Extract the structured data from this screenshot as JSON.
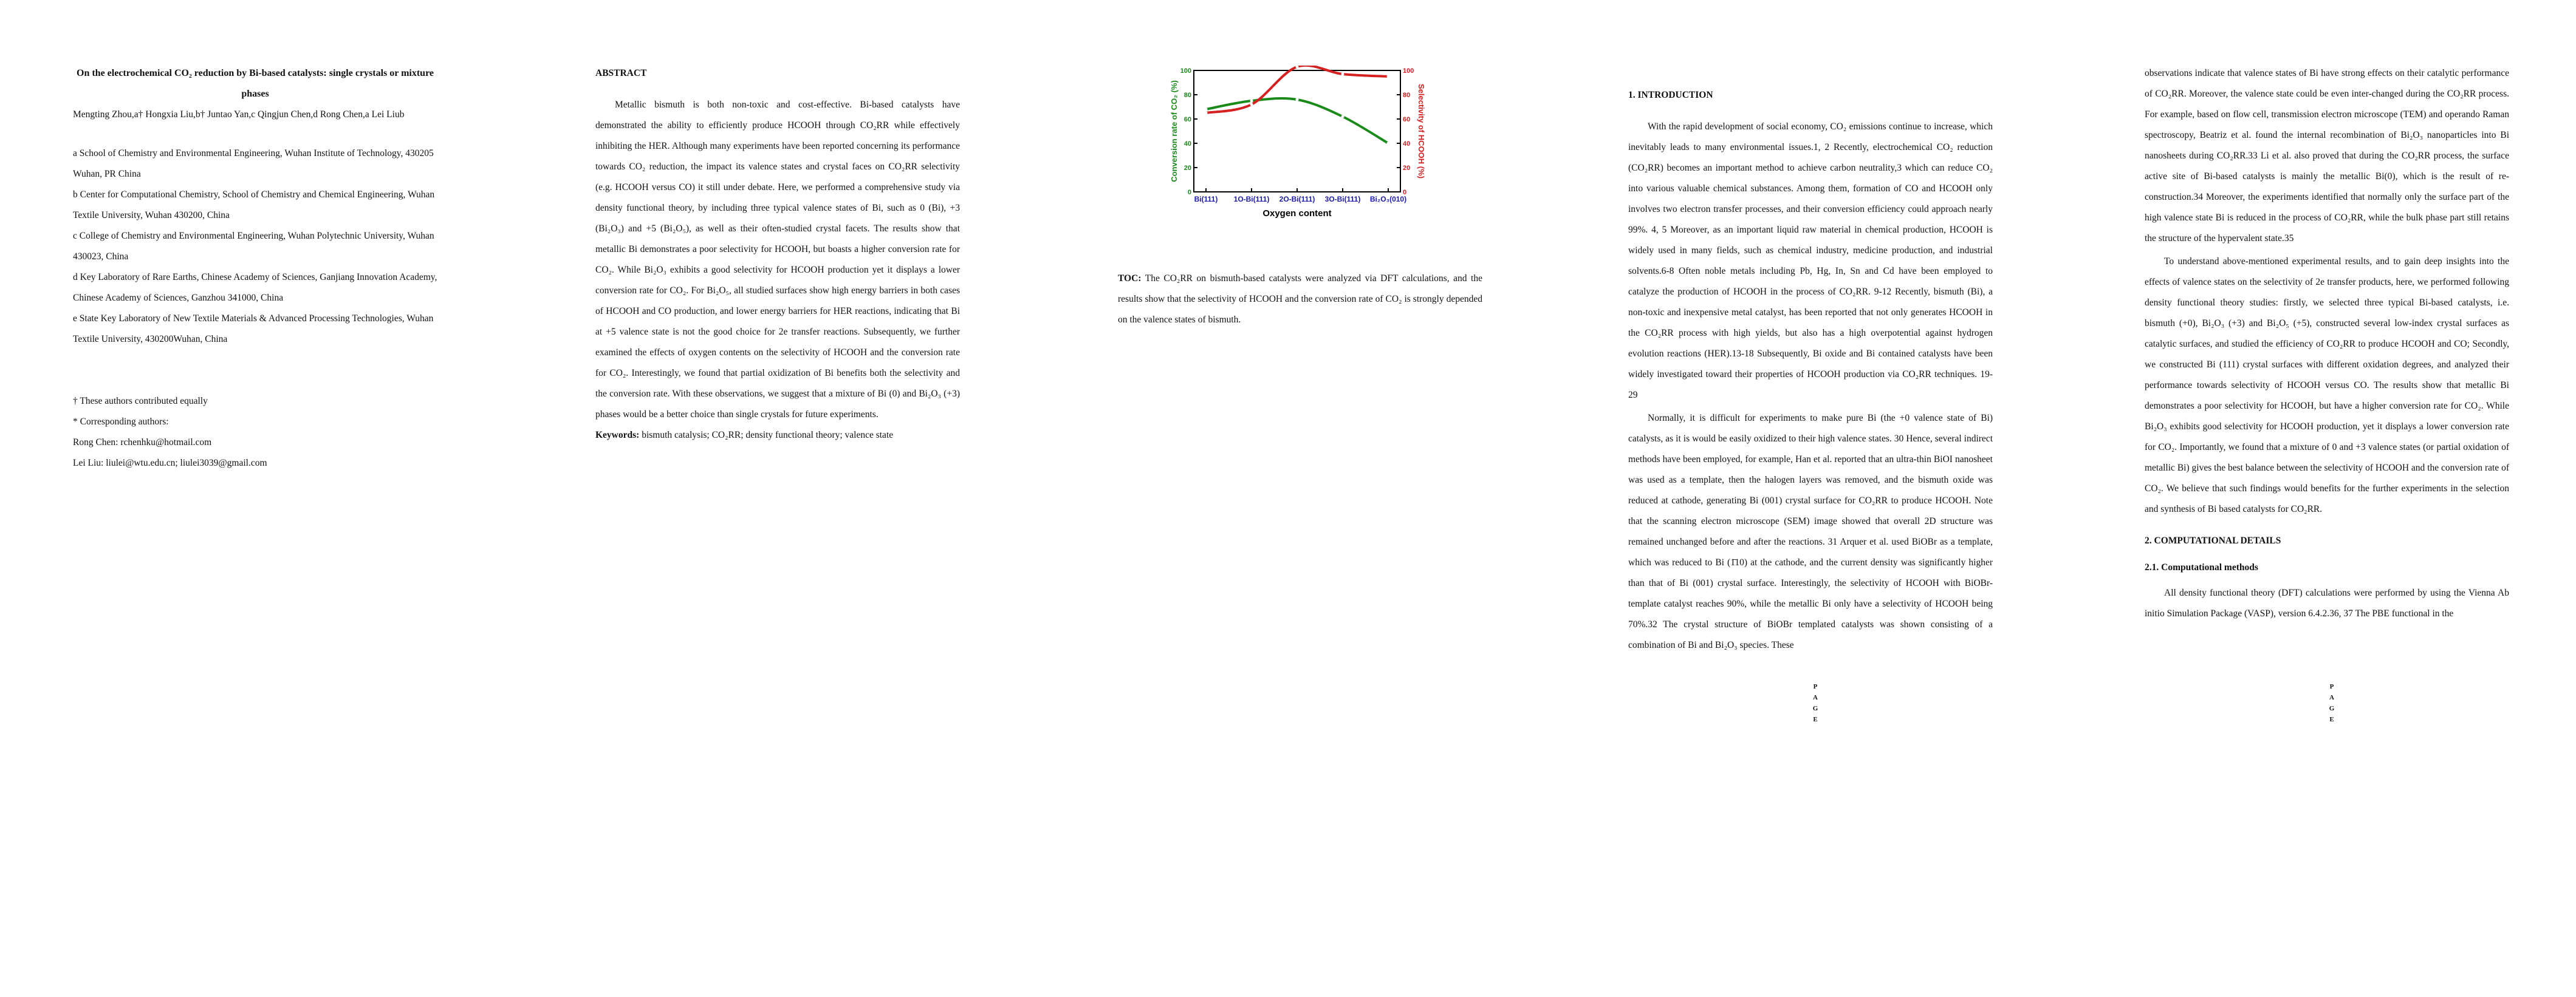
{
  "col1": {
    "title": "On the electrochemical CO₂ reduction by Bi-based catalysts: single crystals or mixture phases",
    "authors": "Mengting Zhou,a† Hongxia Liu,b† Juntao Yan,c Qingjun Chen,d Rong Chen,a Lei Liub",
    "affiliations": [
      "a School of Chemistry and Environmental Engineering, Wuhan Institute of Technology, 430205 Wuhan, PR China",
      "b Center for Computational Chemistry, School of Chemistry and Chemical Engineering, Wuhan Textile University, Wuhan 430200, China",
      "c College of Chemistry and Environmental Engineering, Wuhan Polytechnic University, Wuhan 430023, China",
      "d Key Laboratory of Rare Earths, Chinese Academy of Sciences, Ganjiang Innovation Academy, Chinese Academy of Sciences, Ganzhou 341000, China",
      "e State Key Laboratory of New Textile Materials & Advanced Processing Technologies, Wuhan Textile University, 430200Wuhan, China"
    ],
    "notes": [
      "† These authors contributed equally",
      "* Corresponding authors:",
      "Rong Chen: rchenhku@hotmail.com",
      "Lei Liu: liulei@wtu.edu.cn; liulei3039@gmail.com"
    ]
  },
  "col2": {
    "abstract_heading": "ABSTRACT",
    "abstract_text": "Metallic bismuth is both non-toxic and cost-effective. Bi-based catalysts have demonstrated the ability to efficiently produce HCOOH through CO₂RR while effectively inhibiting the HER. Although many experiments have been reported concerning its performance towards CO₂ reduction, the impact its valence states and crystal faces on CO₂RR selectivity (e.g. HCOOH versus CO) it still under debate. Here, we performed a comprehensive study via density functional theory, by including three typical valence states of Bi, such as 0 (Bi), +3 (Bi₂O₃) and +5 (Bi₂O₅), as well as their often-studied crystal facets. The results show that metallic Bi demonstrates a poor selectivity for HCOOH, but boasts a higher conversion rate for CO₂. While Bi₂O₃ exhibits a good selectivity for HCOOH production yet it displays a lower conversion rate for CO₂. For Bi₂O₅, all studied surfaces show high energy barriers in both cases of HCOOH and CO production, and lower energy barriers for HER reactions, indicating that Bi at +5 valence state is not the good choice for 2e transfer reactions. Subsequently, we further examined the effects of oxygen contents on the selectivity of HCOOH and the conversion rate for CO₂. Interestingly, we found that partial oxidization of Bi benefits both the selectivity and the conversion rate. With these observations, we suggest that a mixture of Bi (0) and Bi₂O₃ (+3) phases would be a better choice than single crystals for future experiments.",
    "keywords_label": "Keywords:",
    "keywords_text": "bismuth catalysis; CO₂RR; density functional theory; valence state"
  },
  "toc": {
    "label": "TOC:",
    "text": "The CO₂RR on bismuth-based catalysts were analyzed via DFT calculations, and the results show that the selectivity of HCOOH and the conversion rate of CO₂ is strongly depended on the valence states of bismuth."
  },
  "chart_data": {
    "type": "line",
    "categories": [
      "Bi(111)",
      "1O-Bi(111)",
      "2O-Bi(111)",
      "3O-Bi(111)",
      "Bi₂O₃(010)"
    ],
    "xlabel": "Oxygen content",
    "ylabel_left": "Conversion rate of CO₂ (%)",
    "ylabel_right": "Selectivity of HCOOH (%)",
    "ylim_left": [
      0,
      100
    ],
    "ylim_right": [
      0,
      100
    ],
    "yticks": [
      "0",
      "20",
      "40",
      "60",
      "80",
      "100"
    ],
    "series": [
      {
        "axis": "left",
        "color": "#1a8a1a",
        "values": [
          68,
          75,
          76,
          62,
          40
        ]
      },
      {
        "axis": "right",
        "color": "#d42020",
        "values": [
          65,
          72,
          103,
          97,
          95
        ]
      }
    ]
  },
  "col4": {
    "intro_heading": "1.   INTRODUCTION",
    "para1": "With the rapid development of social economy, CO₂ emissions continue to increase, which inevitably leads to many environmental issues.1, 2 Recently, electrochemical CO₂ reduction (CO₂RR) becomes an important method to achieve carbon neutrality,3 which can reduce CO₂ into various valuable chemical substances. Among them, formation of CO and HCOOH only involves two electron transfer processes, and their conversion efficiency could approach nearly 99%. 4, 5 Moreover, as an important liquid raw material in chemical production, HCOOH is widely used in many fields, such as chemical industry, medicine production, and industrial solvents.6-8 Often noble metals including Pb, Hg, In, Sn and Cd have been employed to catalyze the production of HCOOH in the process of CO₂RR. 9-12 Recently, bismuth (Bi), a non-toxic and inexpensive metal catalyst, has been reported that not only generates HCOOH in the CO₂RR process with high yields, but also has a high overpotential against hydrogen evolution reactions (HER).13-18 Subsequently, Bi oxide and Bi contained catalysts have been widely investigated toward their properties of HCOOH production via CO₂RR techniques. 19-29",
    "para2": "Normally, it is difficult for experiments to make pure Bi (the +0 valence state of Bi) catalysts, as it is would be easily oxidized to their high valence states. 30 Hence, several indirect methods have been employed, for example, Han et al. reported that an ultra-thin BiOI nanosheet was used as a template, then the halogen layers was removed, and the bismuth oxide was reduced at cathode, generating Bi (001) crystal surface for CO₂RR to produce HCOOH. Note that the scanning electron microscope (SEM) image showed that overall 2D structure was remained unchanged before and after the reactions. 31 Arquer et al. used BiOBr as a template, which was reduced to Bi (1̄10) at the cathode, and the current density was significantly higher than that of Bi (001) crystal surface. Interestingly, the selectivity of HCOOH with BiOBr-template catalyst reaches 90%, while the metallic Bi only have a selectivity of HCOOH being 70%.32 The crystal structure of BiOBr templated catalysts was shown consisting of a combination of Bi and Bi₂O₃ species. These"
  },
  "col5": {
    "para1": "observations indicate that valence states of Bi have strong effects on their catalytic performance of CO₂RR. Moreover, the valence state could be even inter-changed during the CO₂RR process. For example, based on flow cell, transmission electron microscope (TEM) and operando Raman spectroscopy, Beatriz et al. found the internal recombination of Bi₂O₃ nanoparticles into Bi nanosheets during CO₂RR.33 Li et al. also proved that during the CO₂RR process, the surface active site of Bi-based catalysts is mainly the metallic Bi(0), which is the result of re-construction.34 Moreover, the experiments identified that normally only the surface part of the high valence state Bi is reduced in the process of CO₂RR, while the bulk phase part still retains the structure of the hypervalent state.35",
    "para2": "To understand above-mentioned experimental results, and to gain deep insights into the effects of valence states on the selectivity of 2e transfer products, here, we performed following density functional theory studies: firstly, we selected three typical Bi-based catalysts, i.e. bismuth (+0), Bi₂O₃ (+3) and Bi₂O₅ (+5), constructed several low-index crystal surfaces as catalytic surfaces, and studied the efficiency of CO₂RR to produce HCOOH and CO; Secondly, we constructed Bi (111) crystal surfaces with different oxidation degrees, and analyzed their performance towards selectivity of HCOOH versus CO. The results show that metallic Bi demonstrates a poor selectivity for HCOOH, but have a higher conversion rate for CO₂. While Bi₂O₃ exhibits good selectivity for HCOOH production, yet it displays a lower conversion rate for CO₂. Importantly, we found that a mixture of 0 and +3 valence states (or partial oxidation of metallic Bi) gives the best balance between the selectivity of HCOOH and the conversion rate of CO₂. We believe that such findings would benefits for the further experiments in the selection and synthesis of Bi based catalysts for CO₂RR.",
    "heading2": "2.   COMPUTATIONAL DETAILS",
    "heading21": "2.1. Computational methods",
    "para3": "All density functional theory (DFT) calculations were performed by using the Vienna Ab initio Simulation Package (VASP), version 6.4.2.36, 37 The PBE functional in the"
  },
  "page_mark": [
    "P",
    "A",
    "G",
    "E"
  ]
}
